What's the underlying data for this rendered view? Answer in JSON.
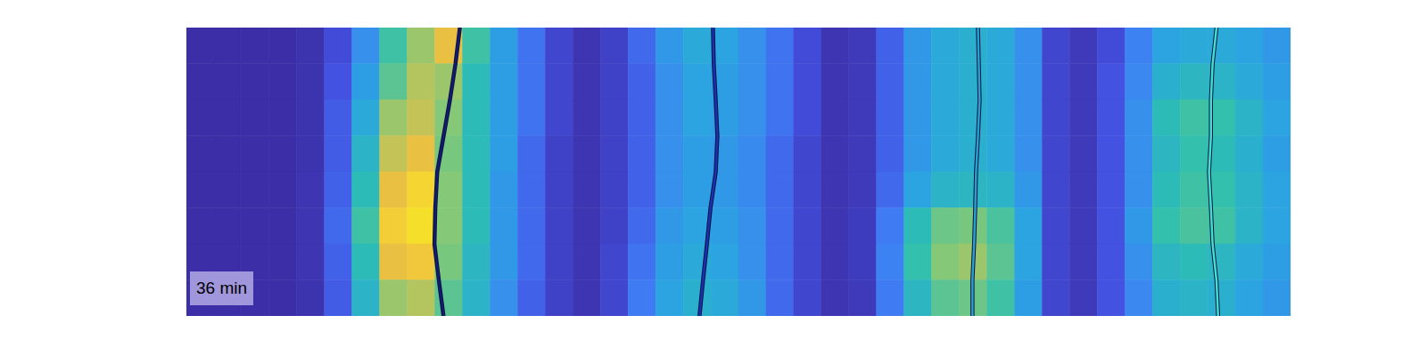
{
  "chart_data": {
    "type": "heatmap",
    "annotation": "36 min",
    "xlim": [
      0,
      40
    ],
    "ylim": [
      0,
      8
    ],
    "tick_labels": false,
    "color_range": [
      0,
      1
    ],
    "cells": [
      [
        0,
        0,
        0,
        0,
        0.02,
        0.12,
        0.35,
        0.6,
        0.75,
        0.85,
        0.6,
        0.4,
        0.25,
        0.1,
        0.03,
        0.08,
        0.22,
        0.38,
        0.45,
        0.42,
        0.35,
        0.25,
        0.12,
        0.03,
        0.05,
        0.2,
        0.38,
        0.45,
        0.48,
        0.45,
        0.35,
        0.1,
        0.05,
        0.12,
        0.3,
        0.42,
        0.45,
        0.45,
        0.42,
        0.38
      ],
      [
        0,
        0,
        0,
        0,
        0.02,
        0.15,
        0.4,
        0.65,
        0.78,
        0.75,
        0.55,
        0.4,
        0.25,
        0.1,
        0.03,
        0.08,
        0.2,
        0.35,
        0.42,
        0.4,
        0.35,
        0.25,
        0.12,
        0.03,
        0.05,
        0.2,
        0.38,
        0.45,
        0.48,
        0.45,
        0.35,
        0.1,
        0.05,
        0.15,
        0.32,
        0.48,
        0.52,
        0.5,
        0.45,
        0.4
      ],
      [
        0,
        0,
        0,
        0,
        0.02,
        0.18,
        0.45,
        0.75,
        0.8,
        0.72,
        0.55,
        0.4,
        0.25,
        0.1,
        0.03,
        0.08,
        0.2,
        0.35,
        0.42,
        0.4,
        0.35,
        0.25,
        0.12,
        0.03,
        0.05,
        0.2,
        0.38,
        0.45,
        0.48,
        0.45,
        0.35,
        0.1,
        0.05,
        0.15,
        0.35,
        0.55,
        0.6,
        0.58,
        0.5,
        0.42
      ],
      [
        0,
        0,
        0,
        0,
        0.02,
        0.18,
        0.5,
        0.8,
        0.85,
        0.7,
        0.55,
        0.4,
        0.22,
        0.08,
        0.03,
        0.08,
        0.2,
        0.35,
        0.4,
        0.38,
        0.33,
        0.22,
        0.1,
        0.03,
        0.05,
        0.2,
        0.38,
        0.45,
        0.48,
        0.45,
        0.35,
        0.1,
        0.05,
        0.15,
        0.35,
        0.52,
        0.58,
        0.55,
        0.48,
        0.4
      ],
      [
        0,
        0,
        0,
        0,
        0.03,
        0.2,
        0.55,
        0.85,
        0.92,
        0.72,
        0.55,
        0.38,
        0.22,
        0.08,
        0.03,
        0.08,
        0.2,
        0.35,
        0.4,
        0.38,
        0.33,
        0.22,
        0.1,
        0.03,
        0.05,
        0.22,
        0.42,
        0.5,
        0.52,
        0.5,
        0.38,
        0.1,
        0.05,
        0.15,
        0.35,
        0.55,
        0.6,
        0.58,
        0.5,
        0.42
      ],
      [
        0,
        0,
        0,
        0,
        0.03,
        0.22,
        0.6,
        0.9,
        0.95,
        0.72,
        0.55,
        0.38,
        0.22,
        0.08,
        0.03,
        0.08,
        0.22,
        0.38,
        0.42,
        0.4,
        0.35,
        0.22,
        0.1,
        0.03,
        0.06,
        0.28,
        0.55,
        0.68,
        0.7,
        0.62,
        0.42,
        0.1,
        0.05,
        0.15,
        0.38,
        0.58,
        0.62,
        0.6,
        0.5,
        0.42
      ],
      [
        0,
        0,
        0,
        0,
        0.03,
        0.2,
        0.55,
        0.85,
        0.88,
        0.7,
        0.52,
        0.38,
        0.22,
        0.08,
        0.03,
        0.1,
        0.25,
        0.4,
        0.45,
        0.42,
        0.35,
        0.22,
        0.1,
        0.03,
        0.06,
        0.3,
        0.58,
        0.72,
        0.75,
        0.65,
        0.42,
        0.1,
        0.05,
        0.15,
        0.35,
        0.52,
        0.55,
        0.52,
        0.45,
        0.4
      ],
      [
        0,
        0,
        0,
        0,
        0.02,
        0.18,
        0.5,
        0.75,
        0.78,
        0.65,
        0.5,
        0.35,
        0.2,
        0.08,
        0.03,
        0.1,
        0.28,
        0.42,
        0.48,
        0.45,
        0.38,
        0.22,
        0.1,
        0.03,
        0.05,
        0.28,
        0.52,
        0.65,
        0.68,
        0.6,
        0.4,
        0.1,
        0.05,
        0.15,
        0.32,
        0.48,
        0.5,
        0.48,
        0.42,
        0.38
      ]
    ],
    "series": [
      {
        "color": "#141a70",
        "x": [
          9.89,
          9.73,
          9.53,
          9.3,
          9.07,
          9.0,
          8.97,
          9.13,
          9.3
        ],
        "y": [
          0,
          1,
          2,
          3,
          4,
          5,
          6,
          7,
          8
        ]
      },
      {
        "color": "#1b2fb0",
        "x": [
          19.06,
          19.09,
          19.16,
          19.22,
          19.16,
          18.97,
          18.84,
          18.7,
          18.57
        ],
        "y": [
          0,
          1,
          2,
          3,
          4,
          5,
          6,
          7,
          8
        ]
      },
      {
        "color": "#2b9fd0",
        "x": [
          28.66,
          28.69,
          28.72,
          28.66,
          28.59,
          28.56,
          28.52,
          28.46,
          28.46
        ],
        "y": [
          0,
          1,
          2,
          3,
          4,
          5,
          6,
          7,
          8
        ]
      },
      {
        "color": "#40e0d0",
        "x": [
          37.3,
          37.16,
          37.1,
          37.1,
          37.03,
          37.1,
          37.16,
          37.3,
          37.36
        ],
        "y": [
          0,
          1,
          2,
          3,
          4,
          5,
          6,
          7,
          8
        ]
      }
    ]
  }
}
